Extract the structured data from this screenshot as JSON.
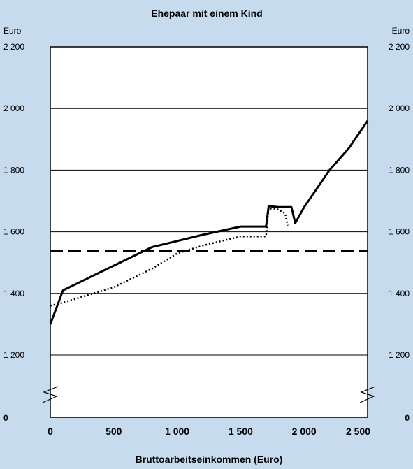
{
  "chart_data": {
    "type": "line",
    "title": "Ehepaar mit einem Kind",
    "y_unit_left": "Euro",
    "y_unit_right": "Euro",
    "xlabel": "Bruttoarbeitseinkommen (Euro)",
    "xlim": [
      0,
      2500
    ],
    "ylim": [
      1100,
      2200
    ],
    "axis_break": true,
    "grid": "horizontal",
    "x_ticks": [
      {
        "value": 0,
        "label": "0"
      },
      {
        "value": 500,
        "label": "500"
      },
      {
        "value": 1000,
        "label": "1 000"
      },
      {
        "value": 1500,
        "label": "1 500"
      },
      {
        "value": 2000,
        "label": "2 000"
      },
      {
        "value": 2500,
        "label": "2 500"
      }
    ],
    "y_ticks": [
      {
        "value": 1200,
        "label": "1 200"
      },
      {
        "value": 1400,
        "label": "1 400"
      },
      {
        "value": 1600,
        "label": "1 600"
      },
      {
        "value": 1800,
        "label": "1 800"
      },
      {
        "value": 2000,
        "label": "2 000"
      },
      {
        "value": 2200,
        "label": "2 200"
      }
    ],
    "y_zero_label": "0",
    "series": [
      {
        "style": "solid",
        "points": [
          [
            0,
            1300
          ],
          [
            100,
            1410
          ],
          [
            400,
            1470
          ],
          [
            800,
            1550
          ],
          [
            1000,
            1570
          ],
          [
            1200,
            1590
          ],
          [
            1500,
            1617
          ],
          [
            1700,
            1617
          ],
          [
            1720,
            1683
          ],
          [
            1800,
            1680
          ],
          [
            1900,
            1680
          ],
          [
            1930,
            1628
          ],
          [
            2000,
            1680
          ],
          [
            2200,
            1800
          ],
          [
            2350,
            1870
          ],
          [
            2500,
            1960
          ]
        ]
      },
      {
        "style": "dotted",
        "points": [
          [
            0,
            1360
          ],
          [
            100,
            1370
          ],
          [
            500,
            1420
          ],
          [
            800,
            1480
          ],
          [
            1000,
            1530
          ],
          [
            1200,
            1555
          ],
          [
            1400,
            1575
          ],
          [
            1500,
            1585
          ],
          [
            1700,
            1585
          ],
          [
            1720,
            1675
          ],
          [
            1780,
            1675
          ],
          [
            1850,
            1660
          ],
          [
            1870,
            1620
          ]
        ]
      },
      {
        "style": "dashed",
        "points": [
          [
            0,
            1537
          ],
          [
            2500,
            1537
          ]
        ]
      }
    ]
  }
}
